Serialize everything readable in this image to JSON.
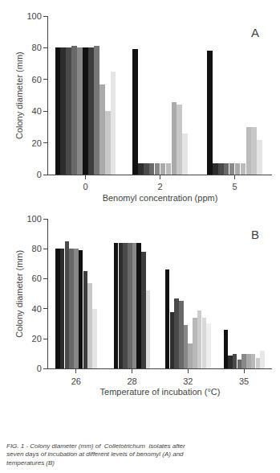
{
  "chart_data": [
    {
      "type": "bar",
      "title": "A",
      "xlabel": "Benomyl concentration (ppm)",
      "ylabel": "Colony diameter (mm)",
      "categories": [
        "0",
        "2",
        "5"
      ],
      "values": [
        [
          80,
          80,
          80,
          81,
          80,
          80,
          80,
          81,
          57,
          40,
          65
        ],
        [
          79,
          7,
          7,
          7,
          7,
          7,
          7,
          46,
          44,
          26
        ],
        [
          78,
          7,
          7,
          7,
          7,
          7,
          7,
          30,
          30,
          22
        ]
      ],
      "colors": [
        [
          "#111111",
          "#2d2d2d",
          "#4a4a4a",
          "#696969",
          "#888888",
          "#111111",
          "#3d3d3d",
          "#777777",
          "#aaaaaa",
          "#c8c8c8",
          "#e5e5e5"
        ],
        [
          "#111111",
          "#2d2d2d",
          "#4a4a4a",
          "#696969",
          "#888888",
          "#aaaaaa",
          "#bbbbbb",
          "#aaaaaa",
          "#c8c8c8",
          "#e5e5e5"
        ],
        [
          "#111111",
          "#2d2d2d",
          "#4a4a4a",
          "#696969",
          "#888888",
          "#aaaaaa",
          "#bbbbbb",
          "#bbbbbb",
          "#c8c8c8",
          "#e5e5e5"
        ]
      ],
      "ylim": [
        0,
        100
      ],
      "yticks": [
        0,
        20,
        40,
        60,
        80,
        100
      ],
      "grid": false
    },
    {
      "type": "bar",
      "title": "B",
      "xlabel": "Temperature of incubation (°C)",
      "ylabel": "Colony diameter (mm)",
      "categories": [
        "26",
        "28",
        "32",
        "35"
      ],
      "values": [
        [
          80,
          80,
          85,
          80,
          80,
          79,
          65,
          57,
          40
        ],
        [
          84,
          84,
          84,
          84,
          84,
          84,
          78,
          52
        ],
        [
          66,
          38,
          47,
          45,
          29,
          17,
          34,
          39,
          34,
          30
        ],
        [
          26,
          9,
          10,
          6,
          10,
          10,
          10,
          7,
          12
        ]
      ],
      "colors": [
        [
          "#111111",
          "#2d2d2d",
          "#4a4a4a",
          "#696969",
          "#888888",
          "#111111",
          "#3d3d3d",
          "#c8c8c8",
          "#e5e5e5"
        ],
        [
          "#111111",
          "#2d2d2d",
          "#4a4a4a",
          "#696969",
          "#888888",
          "#111111",
          "#3d3d3d",
          "#e0e0e0"
        ],
        [
          "#111111",
          "#2d2d2d",
          "#4a4a4a",
          "#696969",
          "#888888",
          "#aaaaaa",
          "#b8b8b8",
          "#cccccc",
          "#d8d8d8",
          "#eeeeee"
        ],
        [
          "#111111",
          "#2d2d2d",
          "#4a4a4a",
          "#696969",
          "#888888",
          "#aaaaaa",
          "#b8b8b8",
          "#cccccc",
          "#e8e8e8"
        ]
      ],
      "ylim": [
        0,
        100
      ],
      "yticks": [
        0,
        20,
        40,
        60,
        80,
        100
      ],
      "grid": false,
      "annotations": [
        "FIG. 1 - Colony diameter (mm) of  Colletotrichum  isolates after seven days of incubation at different levels of benomyl (A) and temperatures (B)"
      ]
    }
  ]
}
